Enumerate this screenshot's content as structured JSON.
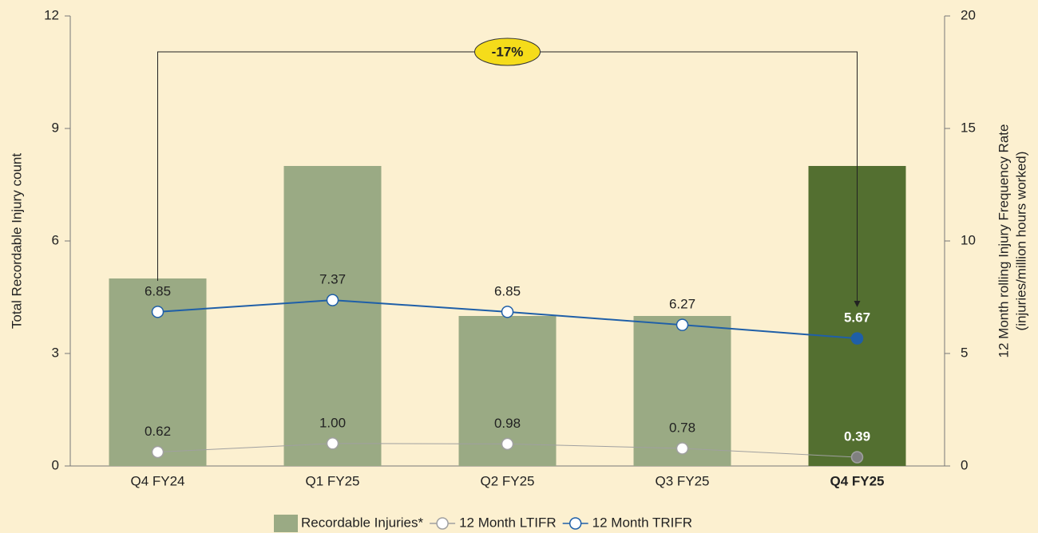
{
  "chart_data": {
    "type": "bar",
    "categories": [
      "Q4 FY24",
      "Q1 FY25",
      "Q2 FY25",
      "Q3 FY25",
      "Q4 FY25"
    ],
    "highlight_index": 4,
    "ylabel": "Total Recordable Injury count",
    "y2label": [
      "12 Month rolling Injury Frequency Rate",
      "(injuries/million hours worked)"
    ],
    "ylim": [
      0,
      12
    ],
    "yticks": [
      0,
      3,
      6,
      9,
      12
    ],
    "y2lim": [
      0,
      20
    ],
    "y2ticks": [
      0,
      5,
      10,
      15,
      20
    ],
    "series": [
      {
        "name": "Recordable Injuries*",
        "type": "bar",
        "color": "#9aaa84",
        "highlight_color": "#536f30",
        "values": [
          5,
          8,
          4,
          4,
          8
        ]
      },
      {
        "name": "12 Month LTIFR",
        "type": "line",
        "axis": "y2",
        "color": "#a0a0a0",
        "highlight_color": "#808080",
        "values": [
          0.62,
          1.0,
          0.98,
          0.78,
          0.39
        ],
        "value_labels": [
          "0.62",
          "1.00",
          "0.98",
          "0.78",
          "0.39"
        ]
      },
      {
        "name": "12 Month TRIFR",
        "type": "line",
        "axis": "y2",
        "color": "#1f5fa8",
        "highlight_color": "#1f5fa8",
        "values": [
          6.85,
          7.37,
          6.85,
          6.27,
          5.67
        ],
        "value_labels": [
          "6.85",
          "7.37",
          "6.85",
          "6.27",
          "5.67"
        ]
      }
    ],
    "annotation": "-17%",
    "legend": "bottom"
  }
}
